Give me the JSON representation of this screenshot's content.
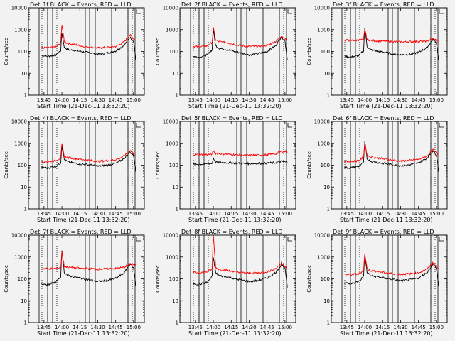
{
  "chart_data": [
    {
      "type": "line",
      "title": "Det_1f BLACK = Events, RED = LLD",
      "xlabel": "Start Time (21-Dec-11 13:32:20)",
      "ylabel": "Counts/sec",
      "y_scale": "log",
      "ylim": [
        1,
        10000
      ],
      "x_ticks": [
        "13:45",
        "14:00",
        "14:15",
        "14:30",
        "14:45",
        "15:00"
      ],
      "y_ticks": [
        "1",
        "10",
        "100",
        "1000",
        "10000"
      ],
      "series": [
        {
          "name": "BLACK = Events",
          "color": "#000000",
          "x": [
            "13:43",
            "13:48",
            "13:55",
            "13:59",
            "14:00",
            "14:02",
            "14:05",
            "14:12",
            "14:18",
            "14:25",
            "14:30",
            "14:38",
            "14:45",
            "14:52",
            "14:57",
            "15:00",
            "15:02"
          ],
          "values": [
            65,
            60,
            70,
            110,
            700,
            160,
            120,
            110,
            95,
            85,
            75,
            85,
            105,
            190,
            450,
            300,
            40
          ]
        },
        {
          "name": "RED = LLD",
          "color": "#ff0000",
          "x": [
            "13:43",
            "13:48",
            "13:55",
            "13:59",
            "14:00",
            "14:02",
            "14:05",
            "14:12",
            "14:18",
            "14:25",
            "14:30",
            "14:38",
            "14:45",
            "14:52",
            "14:57",
            "15:00",
            "15:02"
          ],
          "values": [
            150,
            145,
            160,
            230,
            1800,
            280,
            230,
            200,
            170,
            155,
            145,
            155,
            170,
            270,
            580,
            380,
            330
          ]
        }
      ]
    },
    {
      "type": "line",
      "title": "Det_2f BLACK = Events, RED = LLD",
      "xlabel": "Start Time (21-Dec-11 13:32:20)",
      "ylabel": "Counts/sec",
      "y_scale": "log",
      "ylim": [
        1,
        10000
      ],
      "x_ticks": [
        "13:45",
        "14:00",
        "14:15",
        "14:30",
        "14:45",
        "15:00"
      ],
      "y_ticks": [
        "1",
        "10",
        "100",
        "1000",
        "10000"
      ],
      "series": [
        {
          "name": "BLACK = Events",
          "color": "#000000",
          "x": [
            "13:43",
            "13:48",
            "13:55",
            "13:59",
            "14:00",
            "14:02",
            "14:05",
            "14:12",
            "14:18",
            "14:25",
            "14:30",
            "14:38",
            "14:45",
            "14:52",
            "14:57",
            "15:00",
            "15:02"
          ],
          "values": [
            60,
            55,
            70,
            120,
            1000,
            180,
            140,
            120,
            100,
            80,
            70,
            80,
            100,
            180,
            480,
            300,
            40
          ]
        },
        {
          "name": "RED = LLD",
          "color": "#ff0000",
          "x": [
            "13:43",
            "13:48",
            "13:55",
            "13:59",
            "14:00",
            "14:02",
            "14:05",
            "14:12",
            "14:18",
            "14:25",
            "14:30",
            "14:38",
            "14:45",
            "14:52",
            "14:57",
            "15:00",
            "15:02"
          ],
          "values": [
            170,
            165,
            180,
            260,
            1200,
            330,
            280,
            250,
            210,
            180,
            170,
            175,
            190,
            280,
            520,
            380,
            320
          ]
        }
      ]
    },
    {
      "type": "line",
      "title": "Det_3f BLACK = Events, RED = LLD",
      "xlabel": "Start Time (21-Dec-11 13:32:20)",
      "ylabel": "Counts/sec",
      "y_scale": "log",
      "ylim": [
        1,
        10000
      ],
      "x_ticks": [
        "13:45",
        "14:00",
        "14:15",
        "14:30",
        "14:45",
        "15:00"
      ],
      "y_ticks": [
        "1",
        "10",
        "100",
        "1000",
        "10000"
      ],
      "series": [
        {
          "name": "BLACK = Events",
          "color": "#000000",
          "x": [
            "13:43",
            "13:48",
            "13:55",
            "13:59",
            "14:00",
            "14:02",
            "14:05",
            "14:12",
            "14:18",
            "14:25",
            "14:30",
            "14:38",
            "14:45",
            "14:52",
            "14:57",
            "15:00",
            "15:02"
          ],
          "values": [
            60,
            55,
            65,
            110,
            1200,
            170,
            120,
            100,
            90,
            75,
            70,
            75,
            90,
            150,
            350,
            250,
            40
          ]
        },
        {
          "name": "RED = LLD",
          "color": "#ff0000",
          "x": [
            "13:43",
            "13:48",
            "13:55",
            "13:59",
            "14:00",
            "14:02",
            "14:05",
            "14:12",
            "14:18",
            "14:25",
            "14:30",
            "14:38",
            "14:45",
            "14:52",
            "14:57",
            "15:00",
            "15:02"
          ],
          "values": [
            330,
            320,
            330,
            340,
            1100,
            350,
            320,
            300,
            290,
            280,
            275,
            280,
            290,
            300,
            380,
            330,
            300
          ]
        }
      ]
    },
    {
      "type": "line",
      "title": "Det_4f BLACK = Events, RED = LLD",
      "xlabel": "Start Time (21-Dec-11 13:32:20)",
      "ylabel": "Counts/sec",
      "y_scale": "log",
      "ylim": [
        1,
        10000
      ],
      "x_ticks": [
        "13:45",
        "14:00",
        "14:15",
        "14:30",
        "14:45",
        "15:00"
      ],
      "y_ticks": [
        "1",
        "10",
        "100",
        "1000",
        "10000"
      ],
      "series": [
        {
          "name": "BLACK = Events",
          "color": "#000000",
          "x": [
            "13:43",
            "13:48",
            "13:55",
            "13:59",
            "14:00",
            "14:02",
            "14:05",
            "14:12",
            "14:18",
            "14:25",
            "14:30",
            "14:38",
            "14:45",
            "14:52",
            "14:57",
            "15:00",
            "15:02"
          ],
          "values": [
            80,
            75,
            90,
            130,
            800,
            180,
            140,
            120,
            110,
            100,
            90,
            100,
            120,
            200,
            400,
            280,
            50
          ]
        },
        {
          "name": "RED = LLD",
          "color": "#ff0000",
          "x": [
            "13:43",
            "13:48",
            "13:55",
            "13:59",
            "14:00",
            "14:02",
            "14:05",
            "14:12",
            "14:18",
            "14:25",
            "14:30",
            "14:38",
            "14:45",
            "14:52",
            "14:57",
            "15:00",
            "15:02"
          ],
          "values": [
            150,
            145,
            160,
            220,
            900,
            260,
            220,
            200,
            180,
            160,
            150,
            160,
            180,
            260,
            480,
            330,
            260
          ]
        }
      ]
    },
    {
      "type": "line",
      "title": "Det_5f BLACK = Events, RED = LLD",
      "xlabel": "Start Time (21-Dec-11 13:32:20)",
      "ylabel": "Counts/sec",
      "y_scale": "log",
      "ylim": [
        1,
        10000
      ],
      "x_ticks": [
        "13:45",
        "14:00",
        "14:15",
        "14:30",
        "14:45",
        "15:00"
      ],
      "y_ticks": [
        "1",
        "10",
        "100",
        "1000",
        "10000"
      ],
      "series": [
        {
          "name": "BLACK = Events",
          "color": "#000000",
          "x": [
            "13:43",
            "13:48",
            "13:55",
            "13:59",
            "14:00",
            "14:02",
            "14:05",
            "14:12",
            "14:18",
            "14:25",
            "14:30",
            "14:38",
            "14:45",
            "14:52",
            "14:57",
            "15:00",
            "15:02"
          ],
          "values": [
            110,
            110,
            115,
            120,
            210,
            140,
            135,
            130,
            125,
            120,
            118,
            120,
            125,
            130,
            150,
            140,
            135
          ]
        },
        {
          "name": "RED = LLD",
          "color": "#ff0000",
          "x": [
            "13:43",
            "13:48",
            "13:55",
            "13:59",
            "14:00",
            "14:02",
            "14:05",
            "14:12",
            "14:18",
            "14:25",
            "14:30",
            "14:38",
            "14:45",
            "14:52",
            "14:57",
            "15:00",
            "15:02"
          ],
          "values": [
            310,
            300,
            310,
            320,
            450,
            350,
            340,
            320,
            300,
            290,
            285,
            290,
            300,
            330,
            420,
            430,
            400
          ]
        }
      ]
    },
    {
      "type": "line",
      "title": "Det_6f BLACK = Events, RED = LLD",
      "xlabel": "Start Time (21-Dec-11 13:32:20)",
      "ylabel": "Counts/sec",
      "y_scale": "log",
      "ylim": [
        1,
        10000
      ],
      "x_ticks": [
        "13:45",
        "14:00",
        "14:15",
        "14:30",
        "14:45",
        "15:00"
      ],
      "y_ticks": [
        "1",
        "10",
        "100",
        "1000",
        "10000"
      ],
      "series": [
        {
          "name": "BLACK = Events",
          "color": "#000000",
          "x": [
            "13:43",
            "13:48",
            "13:55",
            "13:59",
            "14:00",
            "14:02",
            "14:05",
            "14:12",
            "14:18",
            "14:25",
            "14:30",
            "14:38",
            "14:45",
            "14:52",
            "14:57",
            "15:00",
            "15:02"
          ],
          "values": [
            80,
            75,
            90,
            130,
            1200,
            200,
            150,
            130,
            115,
            100,
            95,
            105,
            125,
            210,
            450,
            300,
            50
          ]
        },
        {
          "name": "RED = LLD",
          "color": "#ff0000",
          "x": [
            "13:43",
            "13:48",
            "13:55",
            "13:59",
            "14:00",
            "14:02",
            "14:05",
            "14:12",
            "14:18",
            "14:25",
            "14:30",
            "14:38",
            "14:45",
            "14:52",
            "14:57",
            "15:00",
            "15:02"
          ],
          "values": [
            150,
            145,
            160,
            240,
            1100,
            280,
            240,
            210,
            185,
            165,
            155,
            165,
            185,
            260,
            520,
            360,
            270
          ]
        }
      ]
    },
    {
      "type": "line",
      "title": "Det_7f BLACK = Events, RED = LLD",
      "xlabel": "Start Time (21-Dec-11 13:32:20)",
      "ylabel": "Counts/sec",
      "y_scale": "log",
      "ylim": [
        1,
        10000
      ],
      "x_ticks": [
        "13:45",
        "14:00",
        "14:15",
        "14:30",
        "14:45",
        "15:00"
      ],
      "y_ticks": [
        "1",
        "10",
        "100",
        "1000",
        "10000"
      ],
      "series": [
        {
          "name": "BLACK = Events",
          "color": "#000000",
          "x": [
            "13:43",
            "13:48",
            "13:55",
            "13:59",
            "14:00",
            "14:02",
            "14:05",
            "14:12",
            "14:18",
            "14:25",
            "14:30",
            "14:38",
            "14:45",
            "14:52",
            "14:57",
            "15:00",
            "15:02"
          ],
          "values": [
            60,
            55,
            70,
            130,
            1800,
            200,
            140,
            120,
            100,
            85,
            75,
            85,
            105,
            180,
            500,
            300,
            45
          ]
        },
        {
          "name": "RED = LLD",
          "color": "#ff0000",
          "x": [
            "13:43",
            "13:48",
            "13:55",
            "13:59",
            "14:00",
            "14:02",
            "14:05",
            "14:12",
            "14:18",
            "14:25",
            "14:30",
            "14:38",
            "14:45",
            "14:52",
            "14:57",
            "15:00",
            "15:02"
          ],
          "values": [
            300,
            290,
            300,
            330,
            1600,
            380,
            340,
            320,
            300,
            290,
            280,
            290,
            300,
            340,
            480,
            450,
            420
          ]
        }
      ]
    },
    {
      "type": "line",
      "title": "Det_8f BLACK = Events, RED = LLD",
      "xlabel": "Start Time (21-Dec-11 13:32:20)",
      "ylabel": "Counts/sec",
      "y_scale": "log",
      "ylim": [
        1,
        10000
      ],
      "x_ticks": [
        "13:45",
        "14:00",
        "14:15",
        "14:30",
        "14:45",
        "15:00"
      ],
      "y_ticks": [
        "1",
        "10",
        "100",
        "1000",
        "10000"
      ],
      "series": [
        {
          "name": "BLACK = Events",
          "color": "#000000",
          "x": [
            "13:43",
            "13:48",
            "13:55",
            "13:59",
            "14:00",
            "14:02",
            "14:05",
            "14:12",
            "14:18",
            "14:25",
            "14:30",
            "14:38",
            "14:45",
            "14:52",
            "14:57",
            "15:00",
            "15:02"
          ],
          "values": [
            60,
            55,
            70,
            130,
            1000,
            190,
            140,
            120,
            100,
            85,
            75,
            85,
            110,
            190,
            450,
            300,
            40
          ]
        },
        {
          "name": "RED = LLD",
          "color": "#ff0000",
          "x": [
            "13:43",
            "13:48",
            "13:55",
            "13:59",
            "14:00",
            "14:02",
            "14:05",
            "14:12",
            "14:18",
            "14:25",
            "14:30",
            "14:38",
            "14:45",
            "14:52",
            "14:57",
            "15:00",
            "15:02"
          ],
          "values": [
            200,
            190,
            210,
            280,
            10000,
            330,
            270,
            240,
            210,
            190,
            180,
            190,
            210,
            290,
            520,
            380,
            300
          ]
        }
      ]
    },
    {
      "type": "line",
      "title": "Det_9f BLACK = Events, RED = LLD",
      "xlabel": "Start Time (21-Dec-11 13:32:20)",
      "ylabel": "Counts/sec",
      "y_scale": "log",
      "ylim": [
        1,
        10000
      ],
      "x_ticks": [
        "13:45",
        "14:00",
        "14:15",
        "14:30",
        "14:45",
        "15:00"
      ],
      "y_ticks": [
        "1",
        "10",
        "100",
        "1000",
        "10000"
      ],
      "series": [
        {
          "name": "BLACK = Events",
          "color": "#000000",
          "x": [
            "13:43",
            "13:48",
            "13:55",
            "13:59",
            "14:00",
            "14:02",
            "14:05",
            "14:12",
            "14:18",
            "14:25",
            "14:30",
            "14:38",
            "14:45",
            "14:52",
            "14:57",
            "15:00",
            "15:02"
          ],
          "values": [
            65,
            60,
            75,
            130,
            1300,
            200,
            140,
            120,
            105,
            90,
            80,
            90,
            110,
            190,
            480,
            300,
            45
          ]
        },
        {
          "name": "RED = LLD",
          "color": "#ff0000",
          "x": [
            "13:43",
            "13:48",
            "13:55",
            "13:59",
            "14:00",
            "14:02",
            "14:05",
            "14:12",
            "14:18",
            "14:25",
            "14:30",
            "14:38",
            "14:45",
            "14:52",
            "14:57",
            "15:00",
            "15:02"
          ],
          "values": [
            160,
            155,
            170,
            240,
            1400,
            290,
            240,
            210,
            190,
            170,
            160,
            170,
            190,
            270,
            560,
            370,
            290
          ]
        }
      ]
    }
  ]
}
